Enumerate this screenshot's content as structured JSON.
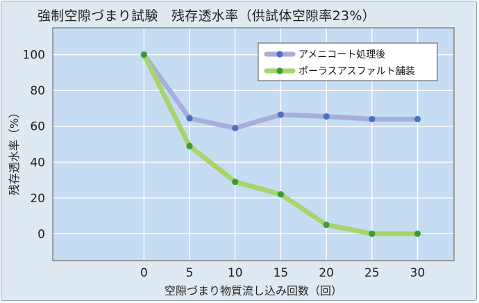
{
  "chart_data": {
    "type": "line",
    "title": "強制空隙づまり試験　残存透水率（供試体空隙率23%）",
    "xlabel": "空隙づまり物質流し込み回数（回）",
    "ylabel": "残存透水率（%）",
    "x": [
      0,
      5,
      10,
      15,
      20,
      25,
      30
    ],
    "xlim": [
      -10,
      34
    ],
    "ylim": [
      -15,
      115
    ],
    "yticks": [
      0,
      20,
      40,
      60,
      80,
      100
    ],
    "grid": true,
    "legend_position": "top-right",
    "series": [
      {
        "name": "アメニコート処理後",
        "color": "#a8aedb",
        "marker_color": "#4f6fbf",
        "values": [
          100,
          64.5,
          59,
          66.5,
          65.5,
          64,
          64
        ]
      },
      {
        "name": "ポーラスアスファルト舗装",
        "color": "#a8d46a",
        "marker_color": "#3f9a3f",
        "values": [
          100,
          49,
          29,
          22,
          5,
          0,
          0
        ]
      }
    ],
    "colors": {
      "plot_bg": "#c5dcf2",
      "grid": "#ffffff",
      "frame_bg": "#dfe9f2"
    }
  }
}
